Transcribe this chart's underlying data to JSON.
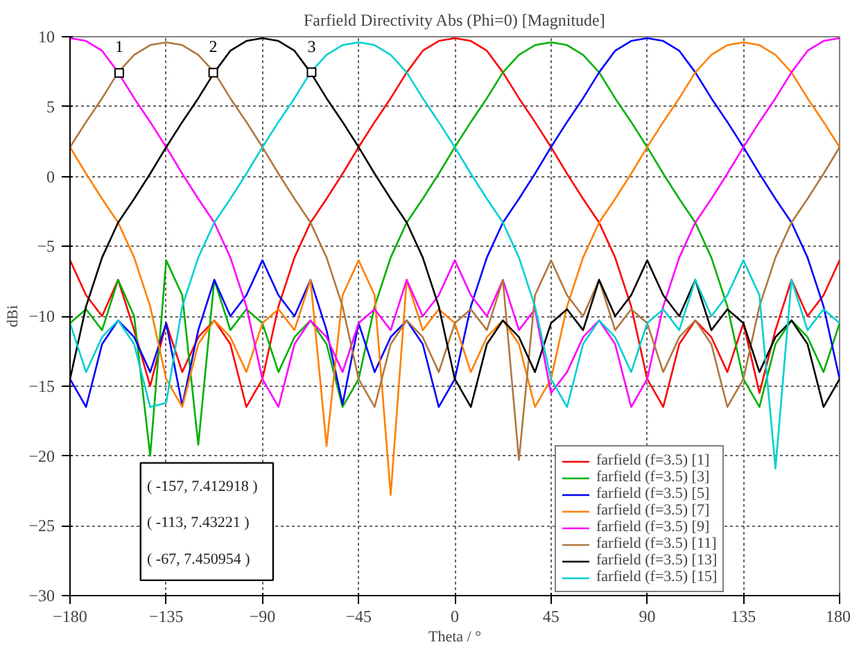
{
  "chart_data": {
    "type": "line",
    "title": "Farfield Directivity Abs (Phi=0) [Magnitude]",
    "xlabel": "Theta / °",
    "ylabel": "dBi",
    "x": [
      -180,
      -172.5,
      -165,
      -157.5,
      -150,
      -142.5,
      -135,
      -127.5,
      -120,
      -112.5,
      -105,
      -97.5,
      -90,
      -82.5,
      -75,
      -67.5,
      -60,
      -52.5,
      -45,
      -37.5,
      -30,
      -22.5,
      -15,
      -7.5,
      0,
      7.5,
      15,
      22.5,
      30,
      37.5,
      45,
      52.5,
      60,
      67.5,
      75,
      82.5,
      90,
      97.5,
      105,
      112.5,
      120,
      127.5,
      135,
      142.5,
      150,
      157.5,
      165,
      172.5,
      180
    ],
    "series": [
      {
        "name": "farfield (f=3.5) [1]",
        "color": "#ff0000",
        "values": [
          -6,
          -8.5,
          -10,
          -7.4,
          -11,
          -15,
          -10.5,
          -14,
          -11.5,
          -10.3,
          -12,
          -16.5,
          -14.5,
          -9.3,
          -5.8,
          -3.3,
          -1.6,
          0.2,
          2.1,
          3.9,
          5.6,
          7.45,
          9.0,
          9.7,
          9.9,
          9.7,
          9.0,
          7.45,
          5.6,
          3.9,
          2.1,
          0.2,
          -1.6,
          -3.3,
          -5.8,
          -9.3,
          -14.5,
          -16.5,
          -12,
          -10.3,
          -11.5,
          -14,
          -10.5,
          -15.5,
          -11,
          -7.4,
          -10,
          -8.5,
          -6
        ]
      },
      {
        "name": "farfield (f=3.5) [3]",
        "color": "#00b000",
        "values": [
          -10.5,
          -9.5,
          -11,
          -7.4,
          -10,
          -20,
          -6,
          -8.5,
          -19.2,
          -7.4,
          -11,
          -9.5,
          -10.5,
          -14,
          -11.5,
          -10.3,
          -12,
          -16.5,
          -14.5,
          -9.3,
          -5.8,
          -3.3,
          -1.6,
          0.2,
          2.1,
          3.9,
          5.6,
          7.45,
          8.7,
          9.4,
          9.6,
          9.4,
          8.7,
          7.45,
          5.6,
          3.9,
          2.1,
          0.2,
          -1.6,
          -3.3,
          -5.8,
          -9.3,
          -14.5,
          -16.5,
          -12,
          -10.3,
          -11.5,
          -14,
          -10.5
        ]
      },
      {
        "name": "farfield (f=3.5) [5]",
        "color": "#0000ff",
        "values": [
          -14.5,
          -16.5,
          -12,
          -10.3,
          -11.5,
          -14,
          -10.5,
          -16.4,
          -11,
          -7.4,
          -10,
          -8.5,
          -6,
          -8.5,
          -10,
          -7.4,
          -11,
          -16.3,
          -10.5,
          -14,
          -11.5,
          -10.3,
          -12,
          -16.5,
          -14.5,
          -9.3,
          -5.8,
          -3.3,
          -1.6,
          0.2,
          2.1,
          3.9,
          5.6,
          7.45,
          9.0,
          9.7,
          9.9,
          9.7,
          9.0,
          7.45,
          5.6,
          3.9,
          2.1,
          0.2,
          -1.6,
          -3.3,
          -5.8,
          -9.3,
          -14.5
        ]
      },
      {
        "name": "farfield (f=3.5) [7]",
        "color": "#ff8000",
        "values": [
          2.1,
          0.2,
          -1.6,
          -3.3,
          -5.8,
          -9.3,
          -14.5,
          -16.5,
          -12,
          -10.3,
          -11.5,
          -14,
          -10.5,
          -9.5,
          -11,
          -7.4,
          -19.3,
          -8.5,
          -6,
          -8.5,
          -22.8,
          -7.4,
          -11,
          -9.5,
          -10.5,
          -14,
          -11.5,
          -10.3,
          -12,
          -16.5,
          -14.5,
          -9.3,
          -5.8,
          -3.3,
          -1.6,
          0.2,
          2.1,
          3.9,
          5.6,
          7.45,
          8.7,
          9.4,
          9.6,
          9.4,
          8.7,
          7.45,
          5.6,
          3.9,
          2.1
        ]
      },
      {
        "name": "farfield (f=3.5) [9]",
        "color": "#ff00ff",
        "values": [
          9.9,
          9.7,
          9.0,
          7.45,
          5.6,
          3.9,
          2.1,
          0.2,
          -1.6,
          -3.3,
          -5.8,
          -9.3,
          -14.5,
          -16.5,
          -12,
          -10.3,
          -11.5,
          -14,
          -10.5,
          -9.5,
          -11,
          -7.4,
          -10,
          -8.5,
          -6,
          -8.5,
          -10,
          -7.4,
          -11,
          -9.5,
          -15.5,
          -14,
          -11.5,
          -10.3,
          -12,
          -16.5,
          -14.5,
          -9.3,
          -5.8,
          -3.3,
          -1.6,
          0.2,
          2.1,
          3.9,
          5.6,
          7.45,
          9.0,
          9.7,
          9.9
        ]
      },
      {
        "name": "farfield (f=3.5) [11]",
        "color": "#b07840",
        "values": [
          2.1,
          3.9,
          5.6,
          7.45,
          8.7,
          9.4,
          9.6,
          9.4,
          8.7,
          7.45,
          5.6,
          3.9,
          2.1,
          0.2,
          -1.6,
          -3.3,
          -5.8,
          -9.3,
          -14.5,
          -16.5,
          -12,
          -10.3,
          -11.5,
          -14,
          -10.5,
          -9.5,
          -11,
          -7.4,
          -20.3,
          -8.5,
          -6,
          -8.5,
          -10,
          -7.4,
          -11,
          -9.5,
          -10.5,
          -14,
          -11.5,
          -10.3,
          -12,
          -16.5,
          -14.5,
          -9.3,
          -5.8,
          -3.3,
          -1.6,
          0.2,
          2.1
        ]
      },
      {
        "name": "farfield (f=3.5) [13]",
        "color": "#000000",
        "values": [
          -14.5,
          -9.3,
          -5.8,
          -3.3,
          -1.6,
          0.2,
          2.1,
          3.9,
          5.6,
          7.45,
          9.0,
          9.7,
          9.9,
          9.7,
          9.0,
          7.45,
          5.6,
          3.9,
          2.1,
          0.2,
          -1.6,
          -3.3,
          -5.8,
          -9.3,
          -14.5,
          -16.5,
          -12,
          -10.3,
          -11.5,
          -14,
          -10.5,
          -9.5,
          -11,
          -7.4,
          -10,
          -8.5,
          -6,
          -8.5,
          -10,
          -7.4,
          -11,
          -9.5,
          -10.5,
          -14,
          -11.5,
          -10.3,
          -12,
          -16.5,
          -14.5
        ]
      },
      {
        "name": "farfield (f=3.5) [15]",
        "color": "#00d0d0",
        "values": [
          -10.5,
          -14,
          -11.5,
          -10.3,
          -12,
          -16.5,
          -16.2,
          -9.3,
          -5.8,
          -3.3,
          -1.6,
          0.2,
          2.1,
          3.9,
          5.6,
          7.45,
          8.7,
          9.4,
          9.6,
          9.4,
          8.7,
          7.45,
          5.6,
          3.9,
          2.1,
          0.2,
          -1.6,
          -3.3,
          -5.8,
          -9.3,
          -14.5,
          -16.5,
          -12,
          -10.3,
          -11.5,
          -14,
          -10.5,
          -9.5,
          -11,
          -7.4,
          -10,
          -8.5,
          -6,
          -8.5,
          -20.9,
          -7.4,
          -11,
          -9.5,
          -10.5
        ]
      }
    ],
    "annotations": [
      {
        "text": "1",
        "x": -157,
        "y": 7.412918
      },
      {
        "text": "2",
        "x": -113,
        "y": 7.43221
      },
      {
        "text": "3",
        "x": -67,
        "y": 7.450954
      },
      "( -157, 7.412918 )",
      "( -113, 7.43221 )",
      "( -67, 7.450954 )"
    ],
    "xlim": [
      -180,
      180
    ],
    "xticks": [
      -180,
      -135,
      -90,
      -45,
      0,
      45,
      90,
      135,
      180
    ],
    "ylim": [
      -30,
      10
    ],
    "yticks": [
      -30,
      -25,
      -20,
      -15,
      -10,
      -5,
      0,
      5,
      10
    ],
    "grid": true,
    "legend": "bottom right",
    "marker": "none",
    "line_style": "solid"
  }
}
